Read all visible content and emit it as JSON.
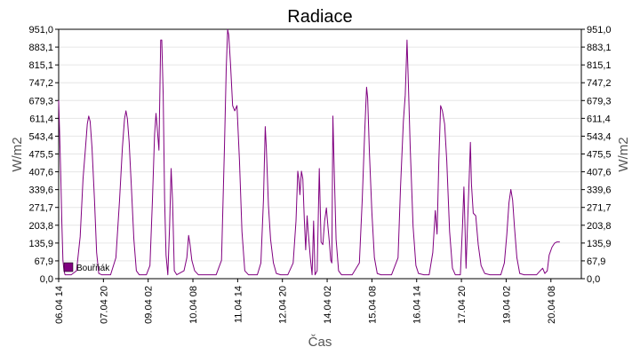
{
  "chart_data": {
    "type": "line",
    "title": "Radiace",
    "xlabel": "Čas",
    "ylabel": "W/m2",
    "ylabel_right": "W/m2",
    "ylim": [
      0,
      951
    ],
    "yticks": [
      "0,0",
      "67,9",
      "135,9",
      "203,8",
      "271,7",
      "339,6",
      "407,6",
      "475,5",
      "543,4",
      "611,4",
      "679,3",
      "747,2",
      "815,1",
      "883,1",
      "951,0"
    ],
    "xlim_days": [
      0,
      14.6
    ],
    "xticks": [
      {
        "label": "06.04 14",
        "day": 0
      },
      {
        "label": "07.04 20",
        "day": 1.25
      },
      {
        "label": "09.04 02",
        "day": 2.5
      },
      {
        "label": "10.04 08",
        "day": 3.75
      },
      {
        "label": "11.04 14",
        "day": 5
      },
      {
        "label": "12.04 20",
        "day": 6.25
      },
      {
        "label": "14.04 02",
        "day": 7.5
      },
      {
        "label": "15.04 08",
        "day": 8.75
      },
      {
        "label": "16.04 14",
        "day": 10
      },
      {
        "label": "17.04 20",
        "day": 11.25
      },
      {
        "label": "19.04 02",
        "day": 12.5
      },
      {
        "label": "20.04 08",
        "day": 13.75
      }
    ],
    "grid": true,
    "legend_position": "bottom-left",
    "series": [
      {
        "name": "Bouřňák",
        "color": "#800080",
        "points": [
          [
            0.0,
            680
          ],
          [
            0.03,
            540
          ],
          [
            0.06,
            390
          ],
          [
            0.09,
            210
          ],
          [
            0.12,
            70
          ],
          [
            0.15,
            30
          ],
          [
            0.18,
            15
          ],
          [
            0.25,
            15
          ],
          [
            0.35,
            15
          ],
          [
            0.5,
            30
          ],
          [
            0.6,
            160
          ],
          [
            0.68,
            380
          ],
          [
            0.75,
            500
          ],
          [
            0.8,
            590
          ],
          [
            0.84,
            620
          ],
          [
            0.88,
            600
          ],
          [
            0.93,
            500
          ],
          [
            1.0,
            300
          ],
          [
            1.06,
            100
          ],
          [
            1.12,
            20
          ],
          [
            1.2,
            15
          ],
          [
            1.45,
            15
          ],
          [
            1.6,
            80
          ],
          [
            1.7,
            300
          ],
          [
            1.78,
            500
          ],
          [
            1.84,
            610
          ],
          [
            1.88,
            640
          ],
          [
            1.92,
            610
          ],
          [
            1.97,
            520
          ],
          [
            2.03,
            350
          ],
          [
            2.1,
            150
          ],
          [
            2.17,
            30
          ],
          [
            2.25,
            15
          ],
          [
            2.45,
            15
          ],
          [
            2.55,
            50
          ],
          [
            2.62,
            300
          ],
          [
            2.68,
            550
          ],
          [
            2.72,
            630
          ],
          [
            2.76,
            560
          ],
          [
            2.8,
            490
          ],
          [
            2.85,
            910
          ],
          [
            2.88,
            910
          ],
          [
            2.92,
            700
          ],
          [
            2.96,
            300
          ],
          [
            3.0,
            90
          ],
          [
            3.05,
            15
          ],
          [
            3.1,
            200
          ],
          [
            3.14,
            420
          ],
          [
            3.18,
            300
          ],
          [
            3.23,
            30
          ],
          [
            3.3,
            15
          ],
          [
            3.5,
            30
          ],
          [
            3.58,
            80
          ],
          [
            3.63,
            165
          ],
          [
            3.67,
            130
          ],
          [
            3.72,
            70
          ],
          [
            3.8,
            30
          ],
          [
            3.9,
            15
          ],
          [
            4.4,
            15
          ],
          [
            4.55,
            70
          ],
          [
            4.63,
            500
          ],
          [
            4.68,
            800
          ],
          [
            4.72,
            950
          ],
          [
            4.75,
            930
          ],
          [
            4.8,
            820
          ],
          [
            4.86,
            660
          ],
          [
            4.92,
            640
          ],
          [
            4.98,
            660
          ],
          [
            5.05,
            450
          ],
          [
            5.12,
            180
          ],
          [
            5.2,
            30
          ],
          [
            5.3,
            15
          ],
          [
            5.55,
            15
          ],
          [
            5.65,
            60
          ],
          [
            5.72,
            300
          ],
          [
            5.77,
            580
          ],
          [
            5.8,
            500
          ],
          [
            5.86,
            280
          ],
          [
            5.92,
            150
          ],
          [
            6.0,
            60
          ],
          [
            6.08,
            20
          ],
          [
            6.2,
            15
          ],
          [
            6.4,
            15
          ],
          [
            6.55,
            60
          ],
          [
            6.63,
            220
          ],
          [
            6.68,
            410
          ],
          [
            6.71,
            380
          ],
          [
            6.74,
            320
          ],
          [
            6.78,
            410
          ],
          [
            6.82,
            380
          ],
          [
            6.86,
            230
          ],
          [
            6.9,
            110
          ],
          [
            6.94,
            240
          ],
          [
            6.97,
            180
          ],
          [
            7.03,
            80
          ],
          [
            7.08,
            15
          ],
          [
            7.12,
            220
          ],
          [
            7.16,
            15
          ],
          [
            7.22,
            30
          ],
          [
            7.28,
            420
          ],
          [
            7.33,
            140
          ],
          [
            7.38,
            130
          ],
          [
            7.43,
            220
          ],
          [
            7.48,
            270
          ],
          [
            7.52,
            200
          ],
          [
            7.56,
            140
          ],
          [
            7.6,
            70
          ],
          [
            7.63,
            60
          ],
          [
            7.66,
            620
          ],
          [
            7.7,
            400
          ],
          [
            7.75,
            150
          ],
          [
            7.82,
            30
          ],
          [
            7.9,
            15
          ],
          [
            8.2,
            15
          ],
          [
            8.4,
            60
          ],
          [
            8.48,
            300
          ],
          [
            8.55,
            560
          ],
          [
            8.6,
            730
          ],
          [
            8.63,
            690
          ],
          [
            8.68,
            480
          ],
          [
            8.75,
            250
          ],
          [
            8.82,
            80
          ],
          [
            8.9,
            20
          ],
          [
            9.0,
            15
          ],
          [
            9.3,
            15
          ],
          [
            9.48,
            80
          ],
          [
            9.55,
            350
          ],
          [
            9.63,
            600
          ],
          [
            9.68,
            700
          ],
          [
            9.73,
            910
          ],
          [
            9.76,
            780
          ],
          [
            9.82,
            500
          ],
          [
            9.9,
            200
          ],
          [
            9.98,
            50
          ],
          [
            10.05,
            20
          ],
          [
            10.2,
            15
          ],
          [
            10.35,
            15
          ],
          [
            10.45,
            100
          ],
          [
            10.52,
            260
          ],
          [
            10.57,
            170
          ],
          [
            10.62,
            450
          ],
          [
            10.67,
            660
          ],
          [
            10.72,
            640
          ],
          [
            10.78,
            590
          ],
          [
            10.84,
            450
          ],
          [
            10.92,
            180
          ],
          [
            11.0,
            40
          ],
          [
            11.08,
            15
          ],
          [
            11.22,
            15
          ],
          [
            11.28,
            200
          ],
          [
            11.32,
            350
          ],
          [
            11.35,
            200
          ],
          [
            11.38,
            40
          ],
          [
            11.42,
            200
          ],
          [
            11.46,
            350
          ],
          [
            11.5,
            520
          ],
          [
            11.53,
            360
          ],
          [
            11.58,
            250
          ],
          [
            11.65,
            240
          ],
          [
            11.72,
            130
          ],
          [
            11.8,
            50
          ],
          [
            11.9,
            20
          ],
          [
            12.05,
            15
          ],
          [
            12.35,
            15
          ],
          [
            12.45,
            60
          ],
          [
            12.52,
            170
          ],
          [
            12.58,
            290
          ],
          [
            12.63,
            340
          ],
          [
            12.68,
            300
          ],
          [
            12.73,
            200
          ],
          [
            12.8,
            80
          ],
          [
            12.88,
            20
          ],
          [
            13.0,
            15
          ],
          [
            13.35,
            15
          ],
          [
            13.45,
            30
          ],
          [
            13.52,
            40
          ],
          [
            13.58,
            20
          ],
          [
            13.65,
            30
          ],
          [
            13.7,
            90
          ],
          [
            13.78,
            120
          ],
          [
            13.85,
            135
          ],
          [
            13.92,
            140
          ],
          [
            14.0,
            140
          ]
        ]
      }
    ]
  }
}
